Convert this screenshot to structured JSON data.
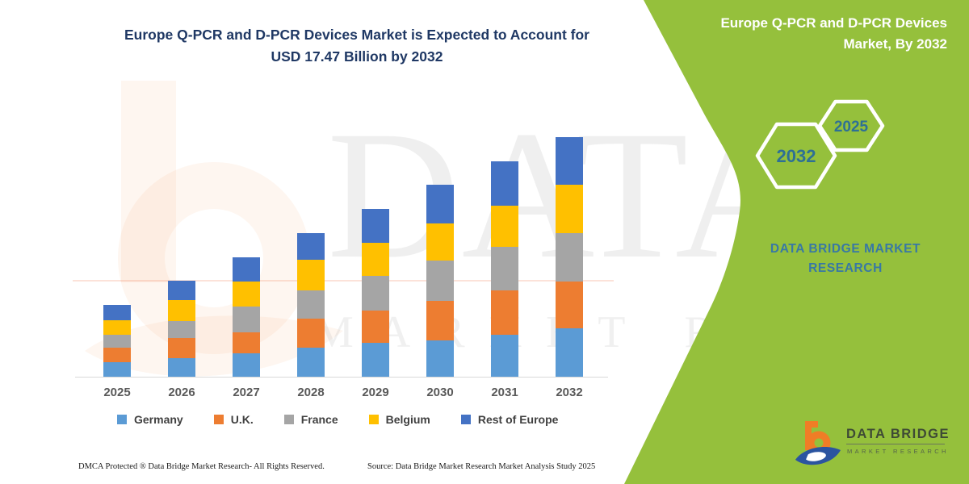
{
  "chart_title": {
    "line1": "Europe Q-PCR and D-PCR Devices Market is Expected to Account for",
    "line2": "USD 17.47 Billion by 2032"
  },
  "chart_data": {
    "type": "bar",
    "stacked": true,
    "title": "Europe Q-PCR and D-PCR Devices Market is Expected to Account for USD 17.47 Billion by 2032",
    "unit": "USD Billion",
    "categories": [
      "2025",
      "2026",
      "2027",
      "2028",
      "2029",
      "2030",
      "2031",
      "2032"
    ],
    "series": [
      {
        "name": "Germany",
        "color": "#5B9BD5",
        "values": [
          1.09,
          1.38,
          1.71,
          2.12,
          2.45,
          2.65,
          3.08,
          3.53
        ]
      },
      {
        "name": "U.K.",
        "color": "#ED7D31",
        "values": [
          1.04,
          1.46,
          1.55,
          2.1,
          2.39,
          2.85,
          3.23,
          3.4
        ]
      },
      {
        "name": "France",
        "color": "#A5A5A5",
        "values": [
          0.96,
          1.2,
          1.85,
          2.1,
          2.5,
          2.94,
          3.16,
          3.57
        ]
      },
      {
        "name": "Belgium",
        "color": "#FFC000",
        "values": [
          1.06,
          1.55,
          1.81,
          2.2,
          2.41,
          2.74,
          3.02,
          3.49
        ]
      },
      {
        "name": "Rest of Europe",
        "color": "#4472C4",
        "values": [
          1.07,
          1.38,
          1.8,
          1.95,
          2.47,
          2.79,
          3.23,
          3.48
        ]
      }
    ],
    "totals": [
      5.22,
      6.97,
      8.72,
      10.47,
      12.22,
      13.97,
      15.72,
      17.47
    ],
    "ylim": [
      0,
      17.47
    ],
    "gridlines": false,
    "legend_position": "bottom"
  },
  "side_panel": {
    "title_line1": "Europe Q-PCR and D-PCR Devices",
    "title_line2": "Market, By 2032",
    "hexagon_year_large": "2032",
    "hexagon_year_small": "2025",
    "dbmr_line1": "DATA BRIDGE MARKET",
    "dbmr_line2": "RESEARCH",
    "panel_color": "#95C03C",
    "year_text_color": "#2E7095"
  },
  "brand": {
    "name": "DATA BRIDGE",
    "subtitle": "MARKET RESEARCH",
    "logo_orange": "#F07D26",
    "logo_blue": "#2B54A0"
  },
  "watermark": {
    "big_text": "DATA BRIDGE",
    "spaced_text": "MARKET RESEARCH"
  },
  "footer": {
    "dmca": "DMCA Protected ® Data Bridge Market Research-  All Rights Reserved.",
    "source": "Source: Data Bridge Market Research  Market Analysis Study 2025"
  }
}
